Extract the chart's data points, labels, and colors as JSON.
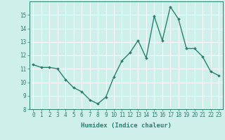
{
  "xlabel": "Humidex (Indice chaleur)",
  "x": [
    0,
    1,
    2,
    3,
    4,
    5,
    6,
    7,
    8,
    9,
    10,
    11,
    12,
    13,
    14,
    15,
    16,
    17,
    18,
    19,
    20,
    21,
    22,
    23
  ],
  "y": [
    11.3,
    11.1,
    11.1,
    11.0,
    10.2,
    9.6,
    9.3,
    8.7,
    8.4,
    8.9,
    10.4,
    11.6,
    12.2,
    13.1,
    11.8,
    14.9,
    13.1,
    15.6,
    14.7,
    12.5,
    12.5,
    11.9,
    10.8,
    10.5
  ],
  "line_color": "#2a7f6f",
  "marker": "D",
  "marker_size": 1.8,
  "line_width": 1.0,
  "bg_color": "#cff0ea",
  "grid_color": "#ffffff",
  "tick_color": "#2a7f6f",
  "label_color": "#2a7f6f",
  "ylim": [
    8,
    16
  ],
  "yticks": [
    8,
    9,
    10,
    11,
    12,
    13,
    14,
    15
  ],
  "xticks": [
    0,
    1,
    2,
    3,
    4,
    5,
    6,
    7,
    8,
    9,
    10,
    11,
    12,
    13,
    14,
    15,
    16,
    17,
    18,
    19,
    20,
    21,
    22,
    23
  ],
  "xlabel_fontsize": 6.5,
  "tick_fontsize": 5.5
}
